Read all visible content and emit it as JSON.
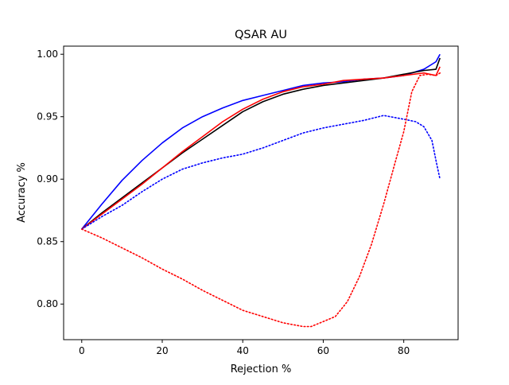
{
  "chart_data": {
    "type": "line",
    "title": "QSAR AU",
    "xlabel": "Rejection %",
    "ylabel": "Accuracy %",
    "xlim": [
      -4.5,
      93.5
    ],
    "ylim": [
      0.7715,
      1.0065
    ],
    "xticks": [
      0,
      20,
      40,
      60,
      80
    ],
    "yticks": [
      0.8,
      0.85,
      0.9,
      0.95,
      1.0
    ],
    "xtick_labels": [
      "0",
      "20",
      "40",
      "60",
      "80"
    ],
    "ytick_labels": [
      "0.80",
      "0.85",
      "0.90",
      "0.95",
      "1.00"
    ],
    "grid": false,
    "legend": "none",
    "series": [
      {
        "color": "#0000ff",
        "style": "solid",
        "x": [
          0,
          5,
          10,
          15,
          20,
          25,
          30,
          35,
          40,
          45,
          50,
          55,
          60,
          65,
          70,
          75,
          80,
          85,
          88,
          89
        ],
        "y": [
          0.86,
          0.88,
          0.899,
          0.915,
          0.929,
          0.941,
          0.95,
          0.957,
          0.963,
          0.967,
          0.971,
          0.975,
          0.977,
          0.978,
          0.98,
          0.981,
          0.983,
          0.988,
          0.994,
          1.0
        ]
      },
      {
        "color": "#000000",
        "style": "solid",
        "x": [
          0,
          5,
          10,
          15,
          20,
          25,
          30,
          35,
          40,
          45,
          50,
          55,
          60,
          65,
          70,
          75,
          80,
          85,
          88,
          89
        ],
        "y": [
          0.86,
          0.873,
          0.885,
          0.897,
          0.909,
          0.921,
          0.932,
          0.943,
          0.954,
          0.962,
          0.968,
          0.972,
          0.975,
          0.977,
          0.979,
          0.981,
          0.984,
          0.987,
          0.988,
          0.997
        ]
      },
      {
        "color": "#ff0000",
        "style": "solid",
        "x": [
          0,
          5,
          10,
          15,
          20,
          25,
          30,
          35,
          40,
          45,
          50,
          55,
          60,
          65,
          70,
          75,
          80,
          85,
          88,
          89
        ],
        "y": [
          0.86,
          0.872,
          0.884,
          0.896,
          0.909,
          0.922,
          0.934,
          0.946,
          0.956,
          0.964,
          0.97,
          0.974,
          0.976,
          0.979,
          0.98,
          0.981,
          0.983,
          0.985,
          0.983,
          0.99
        ]
      },
      {
        "color": "#0000ff",
        "style": "dotted",
        "x": [
          0,
          5,
          10,
          15,
          20,
          25,
          30,
          35,
          40,
          45,
          50,
          55,
          60,
          65,
          70,
          75,
          80,
          83,
          85,
          87,
          88,
          89
        ],
        "y": [
          0.86,
          0.87,
          0.879,
          0.89,
          0.9,
          0.908,
          0.913,
          0.917,
          0.92,
          0.925,
          0.931,
          0.937,
          0.941,
          0.944,
          0.947,
          0.951,
          0.948,
          0.946,
          0.942,
          0.931,
          0.915,
          0.9
        ]
      },
      {
        "color": "#ff0000",
        "style": "dotted",
        "x": [
          0,
          5,
          10,
          15,
          20,
          25,
          30,
          35,
          40,
          45,
          50,
          55,
          57,
          60,
          63,
          66,
          69,
          72,
          75,
          78,
          80,
          82,
          84,
          86,
          88,
          89
        ],
        "y": [
          0.86,
          0.853,
          0.845,
          0.837,
          0.828,
          0.82,
          0.811,
          0.803,
          0.795,
          0.79,
          0.785,
          0.782,
          0.782,
          0.786,
          0.79,
          0.802,
          0.822,
          0.848,
          0.88,
          0.915,
          0.938,
          0.97,
          0.983,
          0.984,
          0.983,
          0.985
        ]
      }
    ]
  }
}
